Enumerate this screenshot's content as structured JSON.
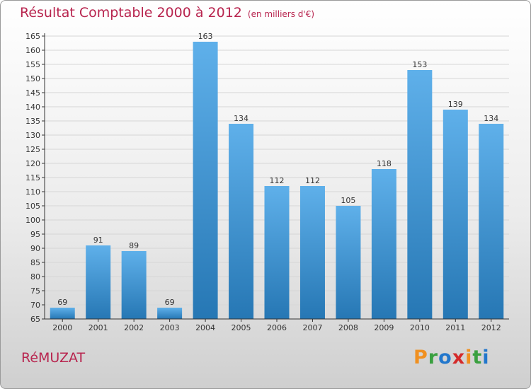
{
  "header": {
    "title": "Résultat Comptable 2000 à 2012",
    "subtitle": "(en milliers d'€)"
  },
  "footer": {
    "commune": "RéMUZAT",
    "logo_text": "Proxiti",
    "logo_letters": [
      {
        "char": "P",
        "color": "#f09020"
      },
      {
        "char": "r",
        "color": "#3aa040"
      },
      {
        "char": "o",
        "color": "#2277cc"
      },
      {
        "char": "x",
        "color": "#d42a2a"
      },
      {
        "char": "i",
        "color": "#f09020"
      },
      {
        "char": "t",
        "color": "#3aa040"
      },
      {
        "char": "i",
        "color": "#2277cc"
      }
    ]
  },
  "colors": {
    "accent": "#b8254f",
    "bar_light": "#5fb0ea",
    "bar_dark": "#2677b4",
    "axis": "#333333",
    "grid": "#d6d6d6"
  },
  "chart_data": {
    "type": "bar",
    "categories": [
      "2000",
      "2001",
      "2002",
      "2003",
      "2004",
      "2005",
      "2006",
      "2007",
      "2008",
      "2009",
      "2010",
      "2011",
      "2012"
    ],
    "values": [
      69,
      91,
      89,
      69,
      163,
      134,
      112,
      112,
      105,
      118,
      153,
      139,
      134
    ],
    "ylim": [
      65,
      165
    ],
    "yticks": [
      65,
      70,
      75,
      80,
      85,
      90,
      95,
      100,
      105,
      110,
      115,
      120,
      125,
      130,
      135,
      140,
      145,
      150,
      155,
      160,
      165
    ],
    "grid": true,
    "title": "Résultat Comptable 2000 à 2012",
    "xlabel": "",
    "ylabel": ""
  }
}
